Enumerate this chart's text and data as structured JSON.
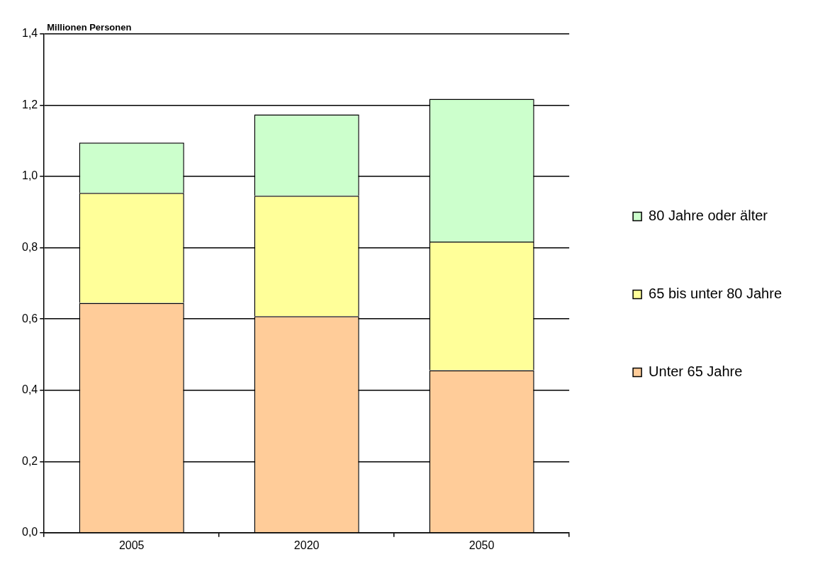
{
  "chart_data": {
    "type": "bar",
    "ylabel": "Millionen Personen",
    "categories": [
      "2005",
      "2020",
      "2050"
    ],
    "stacked": true,
    "series": [
      {
        "name": "Unter 65 Jahre",
        "color": "#ffcc99",
        "values": [
          0.645,
          0.608,
          0.456
        ]
      },
      {
        "name": "65 bis unter 80 Jahre",
        "color": "#ffff99",
        "values": [
          0.309,
          0.338,
          0.361
        ]
      },
      {
        "name": "80 Jahre oder älter",
        "color": "#ccffcc",
        "values": [
          0.141,
          0.228,
          0.401
        ]
      }
    ],
    "ylim": [
      0,
      1.4
    ],
    "yticks": [
      {
        "value": 0,
        "label": "0,0"
      },
      {
        "value": 0.2,
        "label": "0,2"
      },
      {
        "value": 0.4,
        "label": "0,4"
      },
      {
        "value": 0.6,
        "label": "0,6"
      },
      {
        "value": 0.8,
        "label": "0,8"
      },
      {
        "value": 1,
        "label": "1,0"
      },
      {
        "value": 1.2,
        "label": "1,2"
      },
      {
        "value": 1.4,
        "label": "1,4"
      }
    ],
    "grid": "y",
    "legend": "right"
  }
}
